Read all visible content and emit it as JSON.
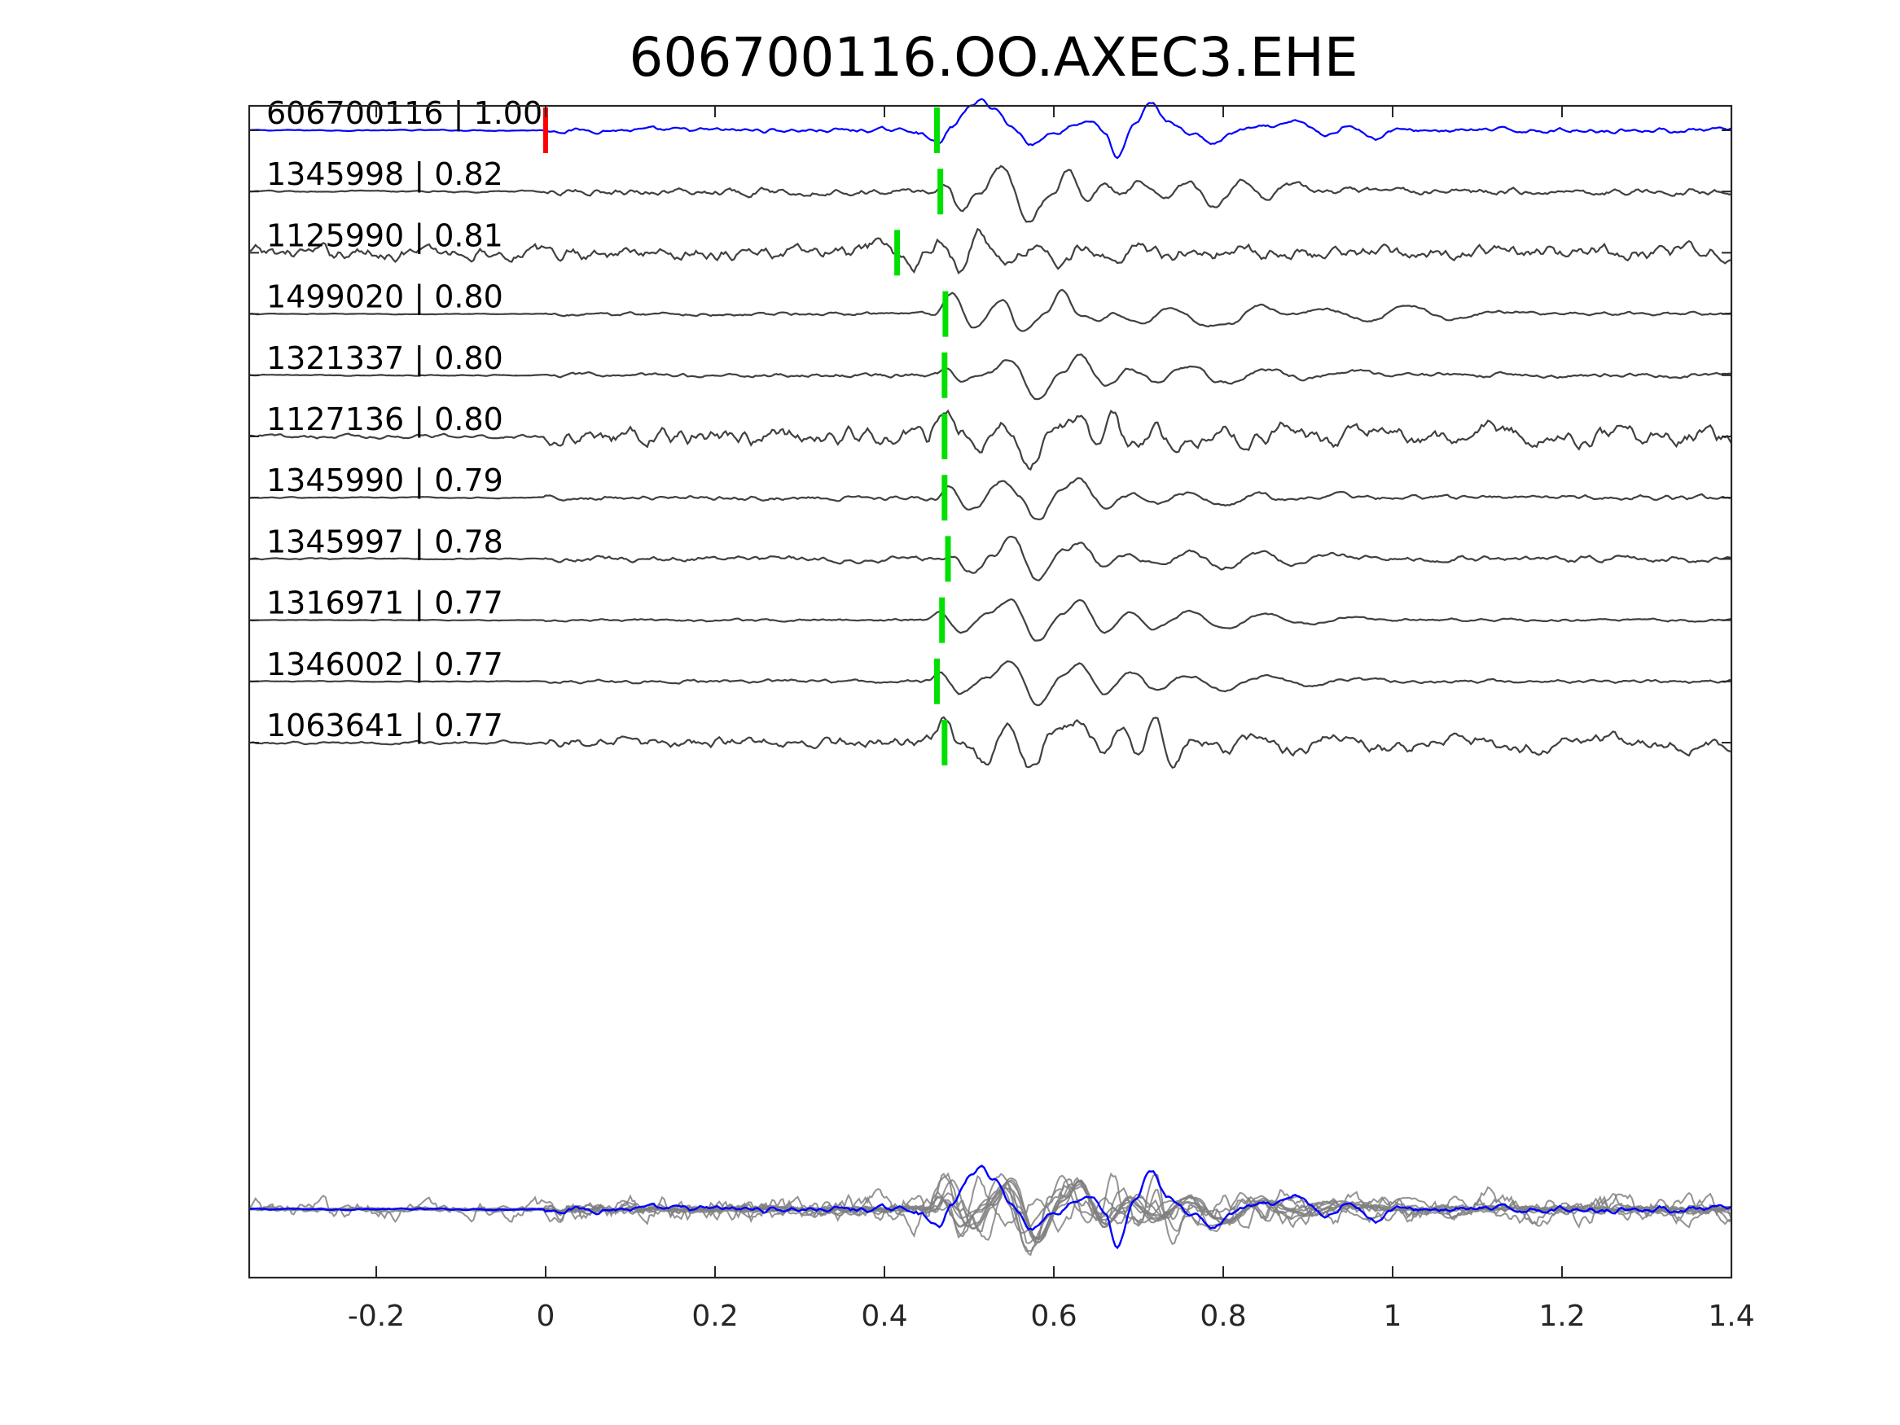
{
  "chart_data": {
    "type": "line",
    "title": "606700116.OO.AXEC3.EHE",
    "xlabel": "",
    "ylabel": "",
    "xlim": [
      -0.35,
      1.4
    ],
    "xticks": [
      -0.2,
      0,
      0.2,
      0.4,
      0.6,
      0.8,
      1,
      1.2,
      1.4
    ],
    "xtick_labels": [
      "-0.2",
      "0",
      "0.2",
      "0.4",
      "0.6",
      "0.8",
      "1",
      "1.2",
      "1.4"
    ],
    "grid": false,
    "colors": {
      "template": "#0000ff",
      "matches": "#404040",
      "stack_matches": "#808080",
      "origin_marker": "#ff0000",
      "pick_marker": "#00e000",
      "axes": "#262626"
    },
    "origin_marker_time": 0.0,
    "series": [
      {
        "label": "606700116 | 1.00",
        "is_template": true,
        "pick_time": 0.462,
        "noise": 0.1,
        "onset": 0.0,
        "waveform": [
          [
            0.44,
            -0.05
          ],
          [
            0.45,
            -0.2
          ],
          [
            0.465,
            -0.45
          ],
          [
            0.48,
            0.1
          ],
          [
            0.5,
            0.8
          ],
          [
            0.515,
            1.0
          ],
          [
            0.53,
            0.75
          ],
          [
            0.55,
            0.1
          ],
          [
            0.575,
            -0.45
          ],
          [
            0.6,
            -0.1
          ],
          [
            0.625,
            0.2
          ],
          [
            0.645,
            0.35
          ],
          [
            0.66,
            -0.1
          ],
          [
            0.675,
            -1.0
          ],
          [
            0.695,
            0.2
          ],
          [
            0.715,
            0.95
          ],
          [
            0.735,
            0.3
          ],
          [
            0.76,
            -0.1
          ],
          [
            0.79,
            -0.45
          ],
          [
            0.81,
            -0.1
          ],
          [
            0.83,
            0.05
          ],
          [
            0.86,
            0.1
          ],
          [
            0.89,
            0.3
          ],
          [
            0.92,
            -0.2
          ],
          [
            0.95,
            0.2
          ],
          [
            0.98,
            -0.3
          ],
          [
            1.0,
            0.0
          ]
        ]
      },
      {
        "label": "1345998 | 0.82",
        "is_template": false,
        "pick_time": 0.466,
        "noise": 0.15,
        "onset": 0.0,
        "waveform": [
          [
            0.45,
            0.0
          ],
          [
            0.46,
            0.1
          ],
          [
            0.47,
            0.3
          ],
          [
            0.49,
            -0.6
          ],
          [
            0.51,
            -0.1
          ],
          [
            0.54,
            0.85
          ],
          [
            0.57,
            -0.9
          ],
          [
            0.6,
            0.0
          ],
          [
            0.615,
            0.8
          ],
          [
            0.64,
            -0.4
          ],
          [
            0.66,
            0.3
          ],
          [
            0.68,
            -0.1
          ],
          [
            0.7,
            0.3
          ],
          [
            0.73,
            -0.3
          ],
          [
            0.76,
            0.3
          ],
          [
            0.79,
            -0.6
          ],
          [
            0.82,
            0.4
          ],
          [
            0.85,
            -0.3
          ],
          [
            0.88,
            0.2
          ],
          [
            0.92,
            0.0
          ]
        ]
      },
      {
        "label": "1125990 | 0.81",
        "is_template": false,
        "pick_time": 0.415,
        "noise": 0.3,
        "onset": -0.35,
        "waveform": [
          [
            0.38,
            0.1
          ],
          [
            0.4,
            0.4
          ],
          [
            0.42,
            -0.3
          ],
          [
            0.43,
            -0.6
          ],
          [
            0.45,
            0.1
          ],
          [
            0.465,
            0.4
          ],
          [
            0.48,
            -0.2
          ],
          [
            0.49,
            -0.5
          ],
          [
            0.51,
            0.7
          ],
          [
            0.525,
            0.1
          ],
          [
            0.55,
            -0.3
          ],
          [
            0.58,
            0.3
          ],
          [
            0.61,
            -0.4
          ],
          [
            0.64,
            0.3
          ],
          [
            0.67,
            -0.2
          ],
          [
            0.7,
            0.2
          ],
          [
            0.73,
            -0.1
          ]
        ]
      },
      {
        "label": "1499020 | 0.80",
        "is_template": false,
        "pick_time": 0.472,
        "noise": 0.08,
        "onset": 0.0,
        "waveform": [
          [
            0.46,
            0.0
          ],
          [
            0.48,
            0.7
          ],
          [
            0.505,
            -0.5
          ],
          [
            0.54,
            0.5
          ],
          [
            0.56,
            -0.6
          ],
          [
            0.59,
            0.0
          ],
          [
            0.61,
            0.9
          ],
          [
            0.63,
            0.0
          ],
          [
            0.65,
            -0.2
          ],
          [
            0.67,
            0.0
          ],
          [
            0.7,
            -0.3
          ],
          [
            0.74,
            0.2
          ],
          [
            0.78,
            -0.4
          ],
          [
            0.81,
            -0.3
          ],
          [
            0.84,
            0.3
          ],
          [
            0.88,
            0.0
          ],
          [
            0.92,
            0.2
          ],
          [
            0.97,
            -0.2
          ],
          [
            1.02,
            0.3
          ],
          [
            1.07,
            -0.2
          ],
          [
            1.12,
            0.1
          ],
          [
            1.2,
            0.0
          ]
        ]
      },
      {
        "label": "1321337 | 0.80",
        "is_template": false,
        "pick_time": 0.471,
        "noise": 0.1,
        "onset": 0.0,
        "waveform": [
          [
            0.46,
            0.0
          ],
          [
            0.475,
            0.3
          ],
          [
            0.49,
            -0.2
          ],
          [
            0.52,
            0.1
          ],
          [
            0.55,
            0.55
          ],
          [
            0.58,
            -0.8
          ],
          [
            0.61,
            0.1
          ],
          [
            0.63,
            0.7
          ],
          [
            0.66,
            -0.3
          ],
          [
            0.69,
            0.2
          ],
          [
            0.72,
            -0.25
          ],
          [
            0.76,
            0.3
          ],
          [
            0.8,
            -0.3
          ],
          [
            0.85,
            0.2
          ],
          [
            0.9,
            -0.1
          ],
          [
            0.95,
            0.15
          ],
          [
            1.0,
            0.0
          ]
        ]
      },
      {
        "label": "1127136 | 0.80",
        "is_template": false,
        "pick_time": 0.471,
        "noise": 0.35,
        "onset": 0.0,
        "waveform": [
          [
            0.455,
            0.2
          ],
          [
            0.47,
            0.8
          ],
          [
            0.49,
            0.2
          ],
          [
            0.51,
            -0.5
          ],
          [
            0.54,
            0.4
          ],
          [
            0.57,
            -0.9
          ],
          [
            0.6,
            0.3
          ],
          [
            0.63,
            0.6
          ],
          [
            0.65,
            -0.3
          ],
          [
            0.67,
            0.6
          ],
          [
            0.69,
            -0.5
          ],
          [
            0.72,
            0.2
          ],
          [
            0.75,
            -0.3
          ],
          [
            0.79,
            0.3
          ],
          [
            0.83,
            -0.3
          ],
          [
            0.87,
            0.3
          ],
          [
            0.92,
            -0.2
          ],
          [
            0.98,
            0.2
          ],
          [
            1.05,
            -0.2
          ],
          [
            1.12,
            0.2
          ],
          [
            1.2,
            -0.1
          ],
          [
            1.3,
            0.1
          ],
          [
            1.4,
            0.0
          ]
        ]
      },
      {
        "label": "1345990 | 0.79",
        "is_template": false,
        "pick_time": 0.471,
        "noise": 0.1,
        "onset": 0.0,
        "waveform": [
          [
            0.46,
            0.0
          ],
          [
            0.475,
            0.4
          ],
          [
            0.5,
            -0.5
          ],
          [
            0.54,
            0.6
          ],
          [
            0.56,
            0.0
          ],
          [
            0.58,
            -0.8
          ],
          [
            0.61,
            0.3
          ],
          [
            0.63,
            0.6
          ],
          [
            0.66,
            -0.3
          ],
          [
            0.69,
            0.1
          ],
          [
            0.72,
            -0.2
          ],
          [
            0.76,
            0.2
          ],
          [
            0.8,
            -0.3
          ],
          [
            0.84,
            0.1
          ],
          [
            0.88,
            -0.1
          ],
          [
            0.93,
            0.1
          ],
          [
            1.0,
            0.0
          ]
        ]
      },
      {
        "label": "1345997 | 0.78",
        "is_template": false,
        "pick_time": 0.475,
        "noise": 0.12,
        "onset": 0.0,
        "waveform": [
          [
            0.46,
            0.0
          ],
          [
            0.48,
            0.1
          ],
          [
            0.5,
            -0.5
          ],
          [
            0.53,
            0.2
          ],
          [
            0.55,
            0.8
          ],
          [
            0.58,
            -0.7
          ],
          [
            0.61,
            0.3
          ],
          [
            0.63,
            0.6
          ],
          [
            0.66,
            -0.3
          ],
          [
            0.69,
            0.2
          ],
          [
            0.72,
            -0.2
          ],
          [
            0.76,
            0.2
          ],
          [
            0.8,
            -0.3
          ],
          [
            0.84,
            0.2
          ],
          [
            0.88,
            -0.1
          ],
          [
            0.93,
            0.1
          ],
          [
            1.0,
            0.0
          ]
        ]
      },
      {
        "label": "1316971 | 0.77",
        "is_template": false,
        "pick_time": 0.468,
        "noise": 0.06,
        "onset": 0.0,
        "waveform": [
          [
            0.45,
            0.0
          ],
          [
            0.465,
            0.3
          ],
          [
            0.49,
            -0.4
          ],
          [
            0.52,
            0.2
          ],
          [
            0.55,
            0.7
          ],
          [
            0.58,
            -0.7
          ],
          [
            0.61,
            0.2
          ],
          [
            0.63,
            0.7
          ],
          [
            0.66,
            -0.4
          ],
          [
            0.69,
            0.3
          ],
          [
            0.72,
            -0.3
          ],
          [
            0.76,
            0.3
          ],
          [
            0.8,
            -0.3
          ],
          [
            0.85,
            0.2
          ],
          [
            0.9,
            -0.15
          ],
          [
            0.95,
            0.1
          ],
          [
            1.0,
            0.0
          ]
        ]
      },
      {
        "label": "1346002 | 0.77",
        "is_template": false,
        "pick_time": 0.462,
        "noise": 0.08,
        "onset": 0.0,
        "waveform": [
          [
            0.45,
            0.0
          ],
          [
            0.465,
            0.3
          ],
          [
            0.49,
            -0.4
          ],
          [
            0.52,
            0.1
          ],
          [
            0.55,
            0.7
          ],
          [
            0.58,
            -0.8
          ],
          [
            0.61,
            0.2
          ],
          [
            0.63,
            0.6
          ],
          [
            0.66,
            -0.4
          ],
          [
            0.69,
            0.3
          ],
          [
            0.72,
            -0.3
          ],
          [
            0.76,
            0.2
          ],
          [
            0.8,
            -0.3
          ],
          [
            0.85,
            0.2
          ],
          [
            0.9,
            -0.15
          ],
          [
            0.95,
            0.1
          ],
          [
            1.0,
            0.0
          ]
        ]
      },
      {
        "label": "1063641 | 0.77",
        "is_template": false,
        "pick_time": 0.471,
        "noise": 0.25,
        "onset": 0.0,
        "waveform": [
          [
            0.45,
            0.0
          ],
          [
            0.47,
            0.8
          ],
          [
            0.49,
            -0.1
          ],
          [
            0.52,
            -0.6
          ],
          [
            0.545,
            0.6
          ],
          [
            0.57,
            -0.9
          ],
          [
            0.6,
            0.3
          ],
          [
            0.63,
            0.8
          ],
          [
            0.66,
            -0.2
          ],
          [
            0.68,
            0.6
          ],
          [
            0.7,
            -0.4
          ],
          [
            0.72,
            0.7
          ],
          [
            0.74,
            -0.6
          ],
          [
            0.77,
            0.2
          ],
          [
            0.8,
            -0.3
          ],
          [
            0.84,
            0.3
          ],
          [
            0.88,
            -0.3
          ],
          [
            0.93,
            0.2
          ],
          [
            1.0,
            -0.2
          ],
          [
            1.07,
            0.2
          ],
          [
            1.15,
            -0.2
          ],
          [
            1.25,
            0.15
          ],
          [
            1.35,
            -0.1
          ],
          [
            1.4,
            0.0
          ]
        ]
      }
    ],
    "stack_row": {
      "label": "",
      "description": "overlay of all waveforms"
    }
  }
}
